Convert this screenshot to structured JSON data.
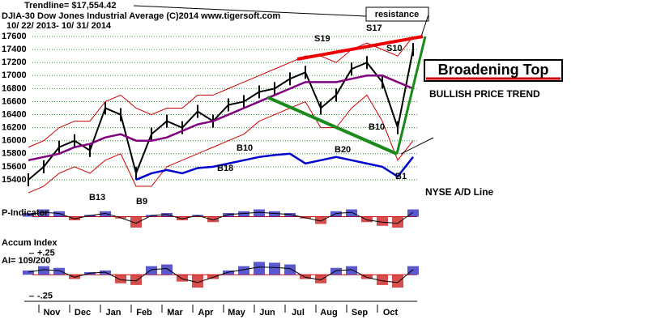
{
  "chart_data": [
    {
      "type": "line",
      "title": "DJIA-30  Dow Jones Industrial Average  (C)2014  www.tigersoft.com",
      "subtitle": "10/ 22/ 2013- 10/ 31/ 2014",
      "annotations": [
        "Trendline= $17,554.42",
        "resistance",
        "Broadening Top",
        "BULLISH PRICE TREND",
        "NYSE A/D Line"
      ],
      "signals": [
        "S19",
        "S17",
        "S10",
        "B10",
        "B10",
        "B20",
        "B18",
        "B13",
        "B9",
        "B1"
      ],
      "categories": [
        null,
        "Nov",
        null,
        "Dec",
        null,
        "Jan",
        null,
        "Feb",
        null,
        "Mar",
        null,
        "Apr",
        null,
        "May",
        null,
        "Jun",
        null,
        "Jul",
        null,
        "Aug",
        null,
        "Sep",
        null,
        "Oct",
        null,
        null
      ],
      "ylim": [
        15300,
        17700
      ],
      "yticks": [
        15400,
        15600,
        15800,
        16000,
        16200,
        16400,
        16600,
        16800,
        17000,
        17200,
        17400,
        17600
      ],
      "grid": true,
      "series": [
        {
          "name": "DJIA-30",
          "color": "#000000",
          "values": [
            15400,
            15600,
            15900,
            16000,
            15850,
            16500,
            16400,
            15500,
            16100,
            16300,
            16200,
            16450,
            16300,
            16550,
            16600,
            16750,
            16800,
            16950,
            17050,
            16500,
            16700,
            17100,
            17200,
            16900,
            16200,
            17400
          ]
        },
        {
          "name": "Upper Band",
          "color": "#cc0000",
          "values": [
            15900,
            16000,
            16200,
            16300,
            16300,
            16600,
            16700,
            16500,
            16400,
            16500,
            16500,
            16700,
            16700,
            16800,
            16900,
            17000,
            17100,
            17200,
            17300,
            17300,
            17200,
            17400,
            17500,
            17400,
            17300,
            17600
          ]
        },
        {
          "name": "Lower Band",
          "color": "#cc0000",
          "values": [
            15200,
            15300,
            15500,
            15600,
            15500,
            15700,
            15800,
            15300,
            15300,
            15600,
            15700,
            15800,
            15900,
            16000,
            16100,
            16300,
            16400,
            16500,
            16600,
            16200,
            16200,
            16500,
            16700,
            16300,
            15700,
            16000
          ]
        },
        {
          "name": "Moving Average",
          "color": "#800080",
          "values": [
            15700,
            15750,
            15800,
            15900,
            15950,
            16050,
            16100,
            16000,
            16000,
            16050,
            16150,
            16250,
            16300,
            16400,
            16500,
            16600,
            16700,
            16800,
            16900,
            16900,
            16900,
            16950,
            17000,
            17000,
            16900,
            16800
          ]
        },
        {
          "name": "NYSE A/D Line",
          "color": "#0000cc",
          "values": [
            null,
            null,
            null,
            null,
            null,
            null,
            null,
            15400,
            15500,
            15550,
            15500,
            15580,
            15600,
            15650,
            15700,
            15750,
            15780,
            15800,
            15650,
            15700,
            15750,
            15700,
            15650,
            15600,
            15450,
            15750
          ]
        }
      ]
    },
    {
      "type": "histogram-bars",
      "title": "P-Indicator",
      "ylim": [
        -100,
        100
      ],
      "values": [
        20,
        40,
        30,
        -20,
        10,
        30,
        -10,
        -60,
        10,
        20,
        -20,
        10,
        -30,
        20,
        30,
        40,
        30,
        20,
        -10,
        -40,
        30,
        40,
        -30,
        -50,
        -60,
        40
      ]
    },
    {
      "type": "histogram-bars",
      "title": "Accum Index",
      "subtitle": "AI= 109/200",
      "ylim": [
        -0.31,
        0.37
      ],
      "yticks": [
        {
          "value": 0.25,
          "label": "+.25"
        },
        {
          "value": -0.25,
          "label": "-.25"
        }
      ],
      "values": [
        0.05,
        0.1,
        0.08,
        -0.05,
        0.03,
        0.05,
        -0.1,
        -0.12,
        0.1,
        0.12,
        -0.08,
        -0.15,
        -0.05,
        0.05,
        0.1,
        0.15,
        0.14,
        0.12,
        -0.05,
        -0.1,
        0.08,
        0.1,
        -0.05,
        -0.12,
        -0.15,
        0.1
      ]
    }
  ]
}
